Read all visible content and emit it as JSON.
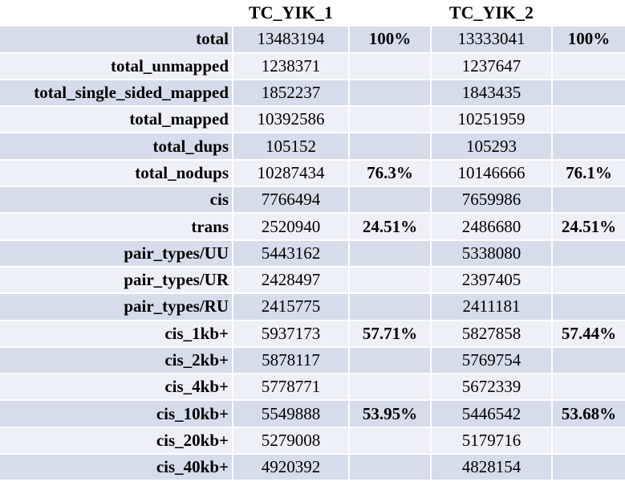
{
  "header": {
    "label": "",
    "sample1": "TC_YIK_1",
    "pct1": "",
    "sample2": "TC_YIK_2",
    "pct2": ""
  },
  "rows": [
    {
      "label": "total",
      "v1": "13483194",
      "p1": "100%",
      "v2": "13333041",
      "p2": "100%"
    },
    {
      "label": "total_unmapped",
      "v1": "1238371",
      "p1": "",
      "v2": "1237647",
      "p2": ""
    },
    {
      "label": "total_single_sided_mapped",
      "v1": "1852237",
      "p1": "",
      "v2": "1843435",
      "p2": ""
    },
    {
      "label": "total_mapped",
      "v1": "10392586",
      "p1": "",
      "v2": "10251959",
      "p2": ""
    },
    {
      "label": "total_dups",
      "v1": "105152",
      "p1": "",
      "v2": "105293",
      "p2": ""
    },
    {
      "label": "total_nodups",
      "v1": "10287434",
      "p1": "76.3%",
      "v2": "10146666",
      "p2": "76.1%"
    },
    {
      "label": "cis",
      "v1": "7766494",
      "p1": "",
      "v2": "7659986",
      "p2": ""
    },
    {
      "label": "trans",
      "v1": "2520940",
      "p1": "24.51%",
      "v2": "2486680",
      "p2": "24.51%"
    },
    {
      "label": "pair_types/UU",
      "v1": "5443162",
      "p1": "",
      "v2": "5338080",
      "p2": ""
    },
    {
      "label": "pair_types/UR",
      "v1": "2428497",
      "p1": "",
      "v2": "2397405",
      "p2": ""
    },
    {
      "label": "pair_types/RU",
      "v1": "2415775",
      "p1": "",
      "v2": "2411181",
      "p2": ""
    },
    {
      "label": "cis_1kb+",
      "v1": "5937173",
      "p1": "57.71%",
      "v2": "5827858",
      "p2": "57.44%"
    },
    {
      "label": "cis_2kb+",
      "v1": "5878117",
      "p1": "",
      "v2": "5769754",
      "p2": ""
    },
    {
      "label": "cis_4kb+",
      "v1": "5778771",
      "p1": "",
      "v2": "5672339",
      "p2": ""
    },
    {
      "label": "cis_10kb+",
      "v1": "5549888",
      "p1": "53.95%",
      "v2": "5446542",
      "p2": "53.68%"
    },
    {
      "label": "cis_20kb+",
      "v1": "5279008",
      "p1": "",
      "v2": "5179716",
      "p2": ""
    },
    {
      "label": "cis_40kb+",
      "v1": "4920392",
      "p1": "",
      "v2": "4828154",
      "p2": ""
    }
  ]
}
